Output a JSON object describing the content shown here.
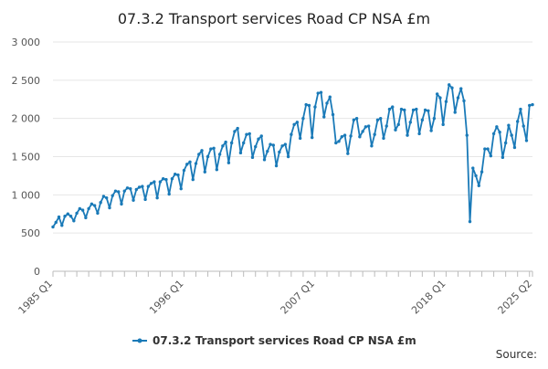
{
  "chart_data": {
    "type": "line",
    "title": "07.3.2 Transport services Road CP NSA £m",
    "xlabel": "",
    "ylabel": "",
    "ylim": [
      0,
      3000
    ],
    "yticks": [
      0,
      500,
      1000,
      1500,
      2000,
      2500,
      3000
    ],
    "ytick_labels": [
      "0",
      "500",
      "1 000",
      "1 500",
      "2 000",
      "2 500",
      "3 000"
    ],
    "x_start": "1985 Q1",
    "x_end": "2025 Q2",
    "xtick_labels": [
      {
        "index": 0,
        "label": "1985 Q1"
      },
      {
        "index": 44,
        "label": "1996 Q1"
      },
      {
        "index": 88,
        "label": "2007 Q1"
      },
      {
        "index": 132,
        "label": "2018 Q1"
      },
      {
        "index": 161,
        "label": "2025 Q2"
      }
    ],
    "grid": true,
    "legend_position": "bottom",
    "series": [
      {
        "name": "07.3.2 Transport services Road CP NSA £m",
        "color": "#1a7ab8",
        "values": [
          580,
          640,
          710,
          600,
          720,
          750,
          720,
          660,
          760,
          820,
          800,
          700,
          820,
          880,
          860,
          760,
          900,
          980,
          960,
          830,
          990,
          1050,
          1040,
          880,
          1050,
          1090,
          1080,
          930,
          1070,
          1100,
          1110,
          940,
          1110,
          1150,
          1170,
          960,
          1170,
          1210,
          1200,
          1010,
          1210,
          1270,
          1260,
          1080,
          1320,
          1400,
          1430,
          1200,
          1410,
          1530,
          1580,
          1300,
          1500,
          1600,
          1610,
          1330,
          1530,
          1640,
          1690,
          1420,
          1680,
          1830,
          1870,
          1550,
          1680,
          1790,
          1800,
          1490,
          1630,
          1730,
          1770,
          1460,
          1570,
          1660,
          1650,
          1380,
          1560,
          1640,
          1660,
          1500,
          1790,
          1920,
          1950,
          1740,
          2000,
          2180,
          2170,
          1750,
          2150,
          2330,
          2340,
          2020,
          2200,
          2280,
          2050,
          1680,
          1700,
          1760,
          1780,
          1540,
          1770,
          1980,
          2000,
          1760,
          1830,
          1890,
          1900,
          1640,
          1790,
          1980,
          2000,
          1740,
          1900,
          2120,
          2150,
          1850,
          1920,
          2120,
          2110,
          1780,
          1950,
          2110,
          2120,
          1800,
          1980,
          2110,
          2100,
          1840,
          2000,
          2320,
          2270,
          1920,
          2220,
          2440,
          2400,
          2080,
          2270,
          2390,
          2230,
          1780,
          650,
          1350,
          1250,
          1120,
          1300,
          1600,
          1600,
          1510,
          1800,
          1890,
          1820,
          1490,
          1680,
          1910,
          1780,
          1620,
          1960,
          2120,
          1900,
          1710,
          2170,
          2180
        ]
      }
    ],
    "source_label": "Source:"
  }
}
